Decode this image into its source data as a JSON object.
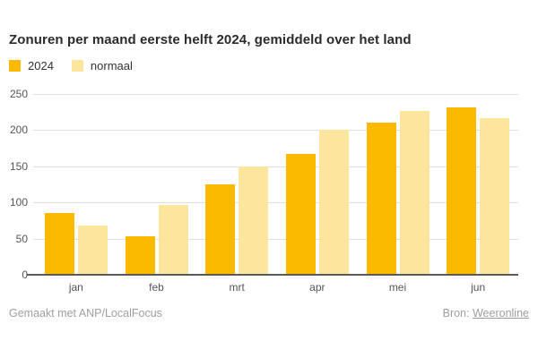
{
  "title": "Zonuren per maand eerste helft 2024, gemiddeld over het land",
  "chart_data": {
    "type": "bar",
    "title": "Zonuren per maand eerste helft 2024, gemiddeld over het land",
    "categories": [
      "jan",
      "feb",
      "mrt",
      "apr",
      "mei",
      "jun"
    ],
    "series": [
      {
        "name": "2024",
        "color": "#FBBA00",
        "values": [
          86,
          53,
          125,
          167,
          211,
          231
        ]
      },
      {
        "name": "normaal",
        "color": "#FCE59D",
        "values": [
          68,
          97,
          150,
          201,
          226,
          216
        ]
      }
    ],
    "xlabel": "",
    "ylabel": "",
    "ylim": [
      0,
      250
    ],
    "yticks": [
      0,
      50,
      100,
      150,
      200,
      250
    ],
    "grid": true,
    "legend_position": "top-left"
  },
  "colors": {
    "background": "#FFFFFF",
    "title_text": "#2B2B2B",
    "axis_text": "#555555",
    "grid_line": "#DFDFDF",
    "axis_line": "#5A5A5A",
    "footer_text": "#9E9E9E"
  },
  "footer": {
    "credit": "Gemaakt met ANP/LocalFocus",
    "source_label": "Bron:",
    "source_link_text": "Weeronline"
  }
}
